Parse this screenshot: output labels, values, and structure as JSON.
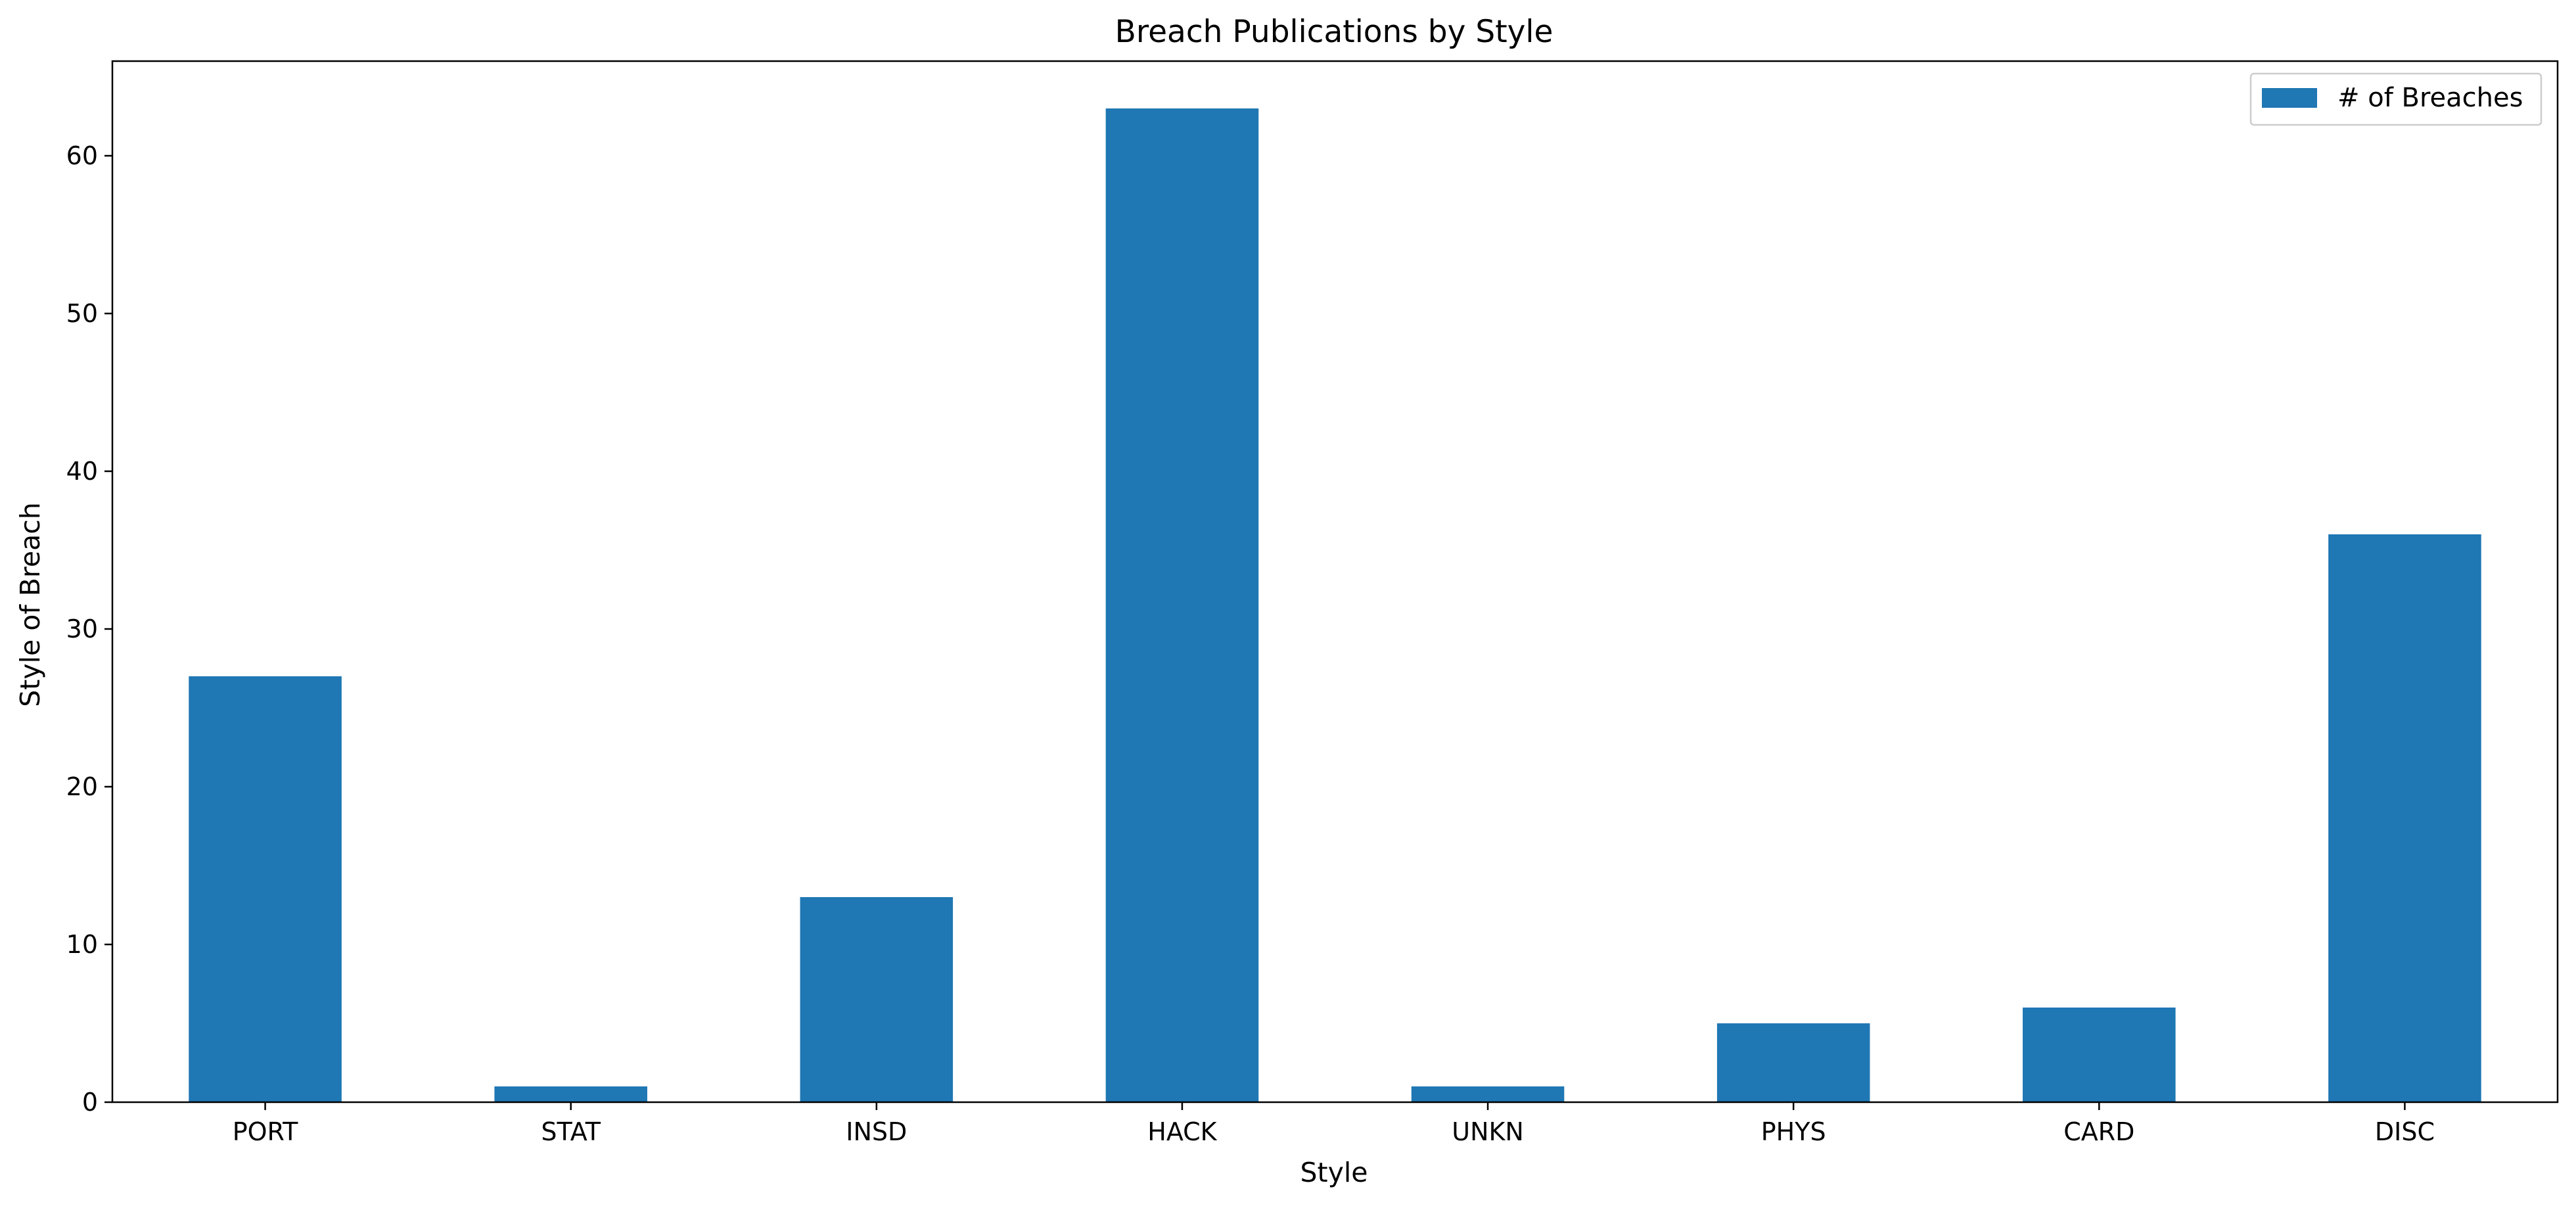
{
  "chart_data": {
    "type": "bar",
    "title": "Breach Publications by Style",
    "xlabel": "Style",
    "ylabel": "Style of Breach",
    "categories": [
      "PORT",
      "STAT",
      "INSD",
      "HACK",
      "UNKN",
      "PHYS",
      "CARD",
      "DISC"
    ],
    "series": [
      {
        "name": "# of Breaches",
        "values": [
          27,
          1,
          13,
          63,
          1,
          5,
          6,
          36
        ],
        "color": "#1f77b4"
      }
    ],
    "ylim": [
      0,
      66
    ],
    "yticks": [
      0,
      10,
      20,
      30,
      40,
      50,
      60
    ],
    "grid": false,
    "legend_position": "top-right"
  }
}
